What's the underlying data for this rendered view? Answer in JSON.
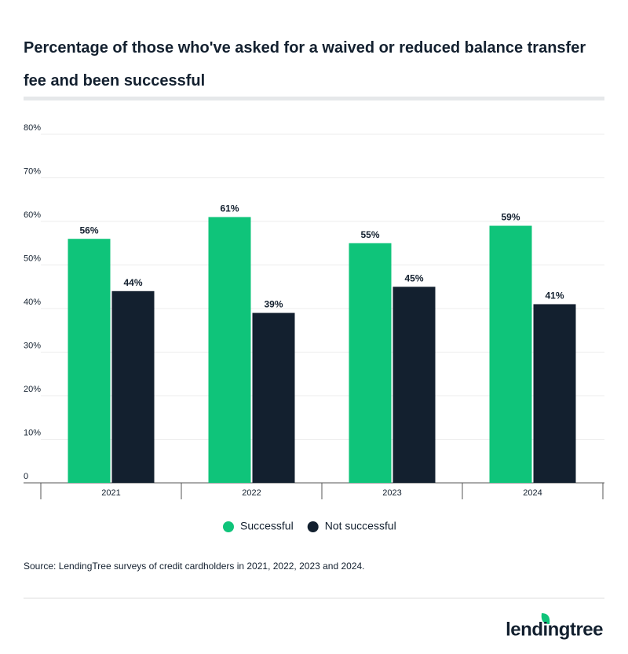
{
  "chart_data": {
    "type": "bar",
    "title": "Percentage of those who've asked for a waived or reduced balance transfer fee and been successful",
    "categories": [
      "2021",
      "2022",
      "2023",
      "2024"
    ],
    "series": [
      {
        "name": "Successful",
        "color": "#0fc47a",
        "values": [
          56,
          61,
          55,
          59
        ],
        "value_labels": [
          "56%",
          "61%",
          "55%",
          "59%"
        ]
      },
      {
        "name": "Not successful",
        "color": "#13202f",
        "values": [
          44,
          39,
          45,
          41
        ],
        "value_labels": [
          "44%",
          "39%",
          "45%",
          "41%"
        ]
      }
    ],
    "ylim": [
      0,
      80
    ],
    "yticks": [
      0,
      {
        "value": 10,
        "label": "10%"
      },
      {
        "value": 20,
        "label": "20%"
      },
      {
        "value": 30,
        "label": "30%"
      },
      {
        "value": 40,
        "label": "40%"
      },
      {
        "value": 50,
        "label": "50%"
      },
      {
        "value": 60,
        "label": "60%"
      },
      {
        "value": 70,
        "label": "70%"
      },
      {
        "value": 80,
        "label": "80%"
      }
    ],
    "grid": true,
    "legend": "bottom",
    "source": "Source: LendingTree surveys of credit cardholders in 2021, 2022, 2023 and 2024.",
    "logo": "lendingtree"
  }
}
